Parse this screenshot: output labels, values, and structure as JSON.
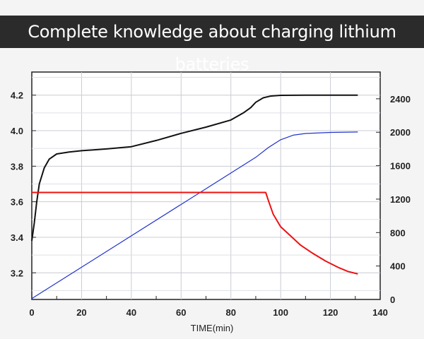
{
  "banner": {
    "title": "Complete knowledge about charging lithium batteries"
  },
  "chart_data": {
    "type": "line",
    "title": "Complete knowledge about charging lithium batteries",
    "xlabel": "TIME(min)",
    "xlim": [
      0,
      140
    ],
    "ylim_left": [
      3.05,
      4.33
    ],
    "ylim_right": [
      0,
      2720
    ],
    "x_ticks": [
      0,
      20,
      40,
      60,
      80,
      100,
      120,
      140
    ],
    "y_left_ticks": [
      3.2,
      3.4,
      3.6,
      3.8,
      4.0,
      4.2
    ],
    "y_left_tick_labels": [
      "3.2",
      "3.4",
      "3.6",
      "3.8",
      "4.0",
      "4.2"
    ],
    "y_right_ticks": [
      0,
      400,
      800,
      1200,
      1600,
      2000,
      2400
    ],
    "grid": true,
    "series": [
      {
        "axis": "left",
        "color": "#111111",
        "points": [
          [
            0,
            3.38
          ],
          [
            1,
            3.48
          ],
          [
            2,
            3.6
          ],
          [
            3,
            3.7
          ],
          [
            5,
            3.79
          ],
          [
            7,
            3.84
          ],
          [
            10,
            3.869
          ],
          [
            15,
            3.88
          ],
          [
            20,
            3.887
          ],
          [
            30,
            3.897
          ],
          [
            40,
            3.91
          ],
          [
            50,
            3.945
          ],
          [
            60,
            3.985
          ],
          [
            70,
            4.02
          ],
          [
            80,
            4.06
          ],
          [
            85,
            4.1
          ],
          [
            88,
            4.13
          ],
          [
            90,
            4.16
          ],
          [
            93,
            4.185
          ],
          [
            96,
            4.195
          ],
          [
            100,
            4.199
          ],
          [
            110,
            4.2
          ],
          [
            131,
            4.2
          ]
        ]
      },
      {
        "axis": "right",
        "color": "#2233cc",
        "points": [
          [
            0,
            10
          ],
          [
            90,
            1700
          ],
          [
            95,
            1815
          ],
          [
            100,
            1910
          ],
          [
            105,
            1965
          ],
          [
            110,
            1985
          ],
          [
            120,
            1998
          ],
          [
            131,
            2003
          ]
        ]
      },
      {
        "axis": "right",
        "color": "#ee1111",
        "points": [
          [
            0,
            1280
          ],
          [
            94,
            1280
          ],
          [
            95,
            1190
          ],
          [
            97,
            1020
          ],
          [
            100,
            870
          ],
          [
            104,
            760
          ],
          [
            108,
            650
          ],
          [
            113,
            550
          ],
          [
            118,
            460
          ],
          [
            123,
            385
          ],
          [
            127,
            335
          ],
          [
            131,
            305
          ]
        ]
      }
    ]
  }
}
